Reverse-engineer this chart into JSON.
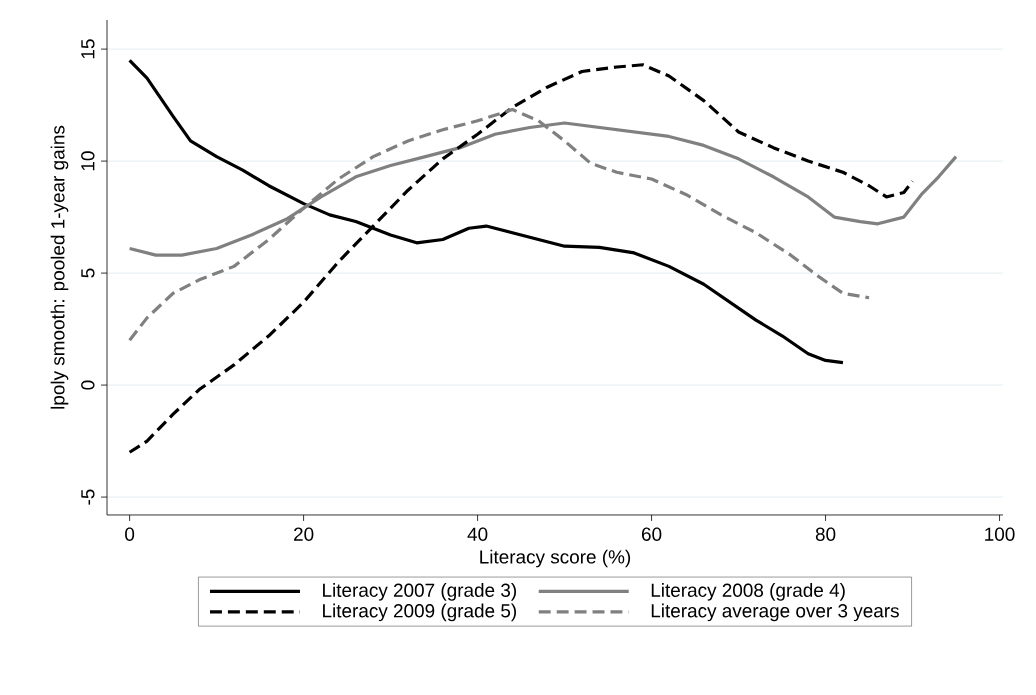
{
  "chart_data": {
    "type": "line",
    "xlabel": "Literacy score (%)",
    "ylabel": "lpoly smooth: pooled 1-year gains",
    "xlim": [
      -2.6,
      100.4
    ],
    "ylim": [
      -5.8,
      16.3
    ],
    "xticks": [
      0,
      20,
      40,
      60,
      80,
      100
    ],
    "yticks": [
      -5,
      0,
      5,
      10,
      15
    ],
    "grid": "y",
    "legend": "bottom",
    "series": [
      {
        "name": "Literacy 2007 (grade 3)",
        "color": "#000000",
        "line_style": "solid",
        "x": [
          0,
          2,
          5,
          7,
          10,
          13,
          16,
          20,
          23,
          26,
          30,
          33,
          36,
          39,
          41,
          44,
          47,
          50,
          54,
          58,
          62,
          66,
          69,
          72,
          75,
          78,
          80,
          82
        ],
        "values": [
          14.5,
          13.7,
          12.0,
          10.9,
          10.2,
          9.6,
          8.9,
          8.1,
          7.6,
          7.3,
          6.7,
          6.35,
          6.5,
          7.0,
          7.1,
          6.8,
          6.5,
          6.2,
          6.15,
          5.9,
          5.3,
          4.5,
          3.7,
          2.9,
          2.2,
          1.4,
          1.1,
          1.0
        ]
      },
      {
        "name": "Literacy 2008 (grade 4)",
        "color": "#808080",
        "line_style": "solid",
        "x": [
          0,
          3,
          6,
          10,
          14,
          18,
          22,
          26,
          30,
          34,
          38,
          42,
          46,
          50,
          54,
          58,
          62,
          66,
          70,
          74,
          78,
          81,
          84,
          86,
          89,
          91,
          93,
          95
        ],
        "values": [
          6.1,
          5.8,
          5.8,
          6.1,
          6.7,
          7.4,
          8.4,
          9.3,
          9.8,
          10.2,
          10.6,
          11.2,
          11.5,
          11.7,
          11.5,
          11.3,
          11.1,
          10.7,
          10.1,
          9.3,
          8.4,
          7.5,
          7.3,
          7.2,
          7.5,
          8.5,
          9.3,
          10.2
        ]
      },
      {
        "name": "Literacy 2009 (grade 5)",
        "color": "#000000",
        "line_style": "dashed",
        "x": [
          0,
          2,
          5,
          8,
          12,
          16,
          20,
          24,
          28,
          32,
          36,
          40,
          44,
          48,
          52,
          56,
          59,
          62,
          66,
          70,
          74,
          78,
          82,
          85,
          87,
          89,
          90
        ],
        "values": [
          -3,
          -2.5,
          -1.3,
          -0.2,
          0.9,
          2.2,
          3.7,
          5.5,
          7.1,
          8.7,
          10.1,
          11.2,
          12.4,
          13.3,
          14,
          14.2,
          14.3,
          13.8,
          12.7,
          11.3,
          10.6,
          10.0,
          9.5,
          8.9,
          8.4,
          8.6,
          9.1
        ]
      },
      {
        "name": "Literacy average over 3 years",
        "color": "#808080",
        "line_style": "dashed",
        "x": [
          0,
          2,
          5,
          8,
          12,
          16,
          20,
          24,
          28,
          32,
          36,
          40,
          44,
          47,
          50,
          53,
          56,
          60,
          64,
          68,
          72,
          76,
          79,
          82,
          85
        ],
        "values": [
          2,
          3.0,
          4.1,
          4.7,
          5.3,
          6.5,
          7.9,
          9.2,
          10.2,
          10.9,
          11.4,
          11.8,
          12.3,
          11.8,
          10.9,
          9.9,
          9.5,
          9.2,
          8.5,
          7.6,
          6.8,
          5.8,
          4.9,
          4.1,
          3.9
        ]
      }
    ]
  }
}
